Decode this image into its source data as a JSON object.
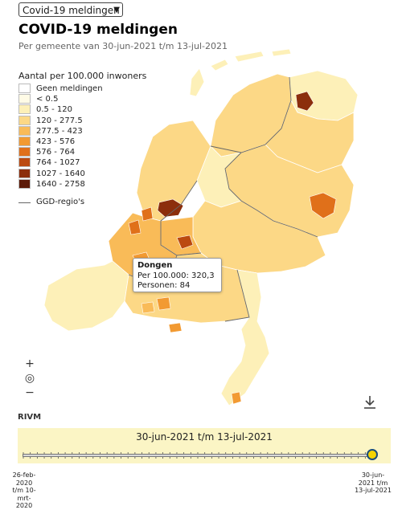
{
  "selector": {
    "value": "Covid-19 meldingen"
  },
  "title": "COVID-19 meldingen",
  "subtitle": "Per gemeente van 30-jun-2021 t/m 13-jul-2021",
  "legend": {
    "title": "Aantal per 100.000 inwoners",
    "items": [
      {
        "label": "Geen meldingen",
        "color": "#ffffff"
      },
      {
        "label": "< 0.5",
        "color": "#fffbe6"
      },
      {
        "label": "0.5 - 120",
        "color": "#fdf0b8"
      },
      {
        "label": "120 - 277.5",
        "color": "#fcd886"
      },
      {
        "label": "277.5 - 423",
        "color": "#f9bb58"
      },
      {
        "label": "423 - 576",
        "color": "#f29a32"
      },
      {
        "label": "576 - 764",
        "color": "#e0701a"
      },
      {
        "label": "764 - 1027",
        "color": "#bb4a10"
      },
      {
        "label": "1027 - 1640",
        "color": "#8c2e0c"
      },
      {
        "label": "1640 - 2758",
        "color": "#5c1a08"
      }
    ],
    "ggd_label": "GGD-regio's"
  },
  "tooltip": {
    "name": "Dongen",
    "per_label": "Per 100.000: 320,3",
    "persons_label": "Personen: 84"
  },
  "map": {
    "zoom_in": "+",
    "locate": "◎",
    "zoom_out": "−",
    "attribution": "RIVM"
  },
  "timeline": {
    "period": "30-jun-2021 t/m 13-jul-2021",
    "start_label": "26-feb-2020 t/m 10-mrt-2020",
    "end_label": "30-jun-2021 t/m 13-jul-2021",
    "position": 1.0
  }
}
